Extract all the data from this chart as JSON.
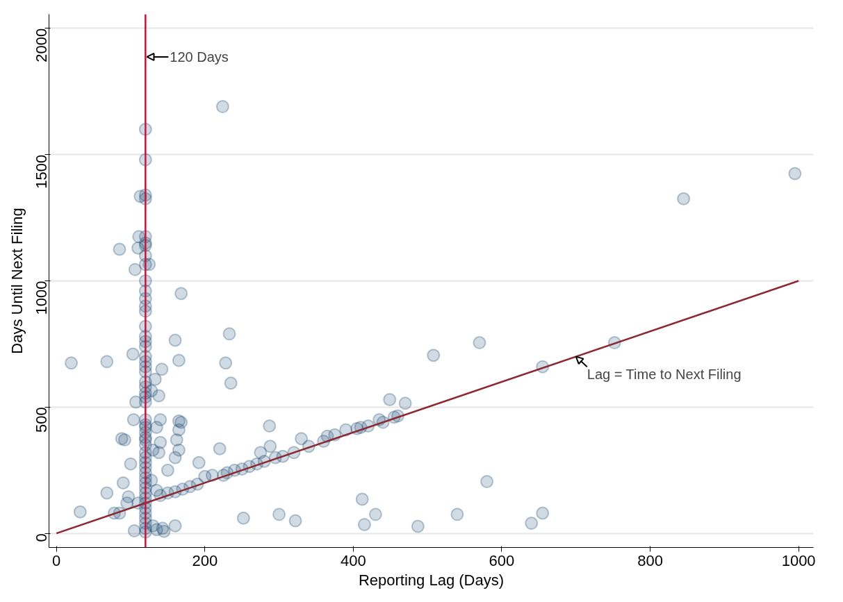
{
  "chart_data": {
    "type": "scatter",
    "xlabel": "Reporting Lag (Days)",
    "ylabel": "Days Until Next Filing",
    "xlim": [
      -10,
      1020
    ],
    "ylim": [
      -56,
      2056
    ],
    "xticks": [
      0,
      200,
      400,
      600,
      800,
      1000
    ],
    "yticks": [
      0,
      500,
      1000,
      1500,
      2000
    ],
    "grid": "y",
    "series": [
      {
        "marker": "circle",
        "color": "#1a4a72",
        "x": [
          224,
          995,
          845,
          20,
          68,
          168,
          233,
          228,
          235,
          160,
          165,
          508,
          570,
          752,
          655,
          449,
          470,
          580,
          412,
          415,
          430,
          487,
          540,
          640,
          655,
          252,
          300,
          322,
          32,
          120,
          120,
          120,
          120,
          120,
          120,
          120,
          120,
          120,
          120,
          120,
          120,
          120,
          120,
          120,
          120,
          120,
          120,
          120,
          120,
          120,
          120,
          120,
          120,
          120,
          120,
          120,
          120,
          120,
          120,
          120,
          120,
          120,
          120,
          120,
          120,
          120,
          120,
          120,
          120,
          120,
          120,
          120,
          120,
          120,
          120,
          120,
          120,
          120,
          120,
          120,
          113,
          111,
          110,
          106,
          85,
          103,
          107,
          125,
          133,
          138,
          142,
          128,
          104,
          135,
          140,
          165,
          168,
          165,
          162,
          165,
          160,
          150,
          140,
          130,
          88,
          92,
          100,
          90,
          97,
          78,
          68,
          85,
          105,
          135,
          145,
          143,
          130,
          160,
          110,
          95,
          128,
          135,
          138,
          140,
          150,
          160,
          170,
          180,
          190,
          192,
          200,
          210,
          220,
          225,
          230,
          240,
          250,
          260,
          270,
          275,
          280,
          287,
          288,
          295,
          305,
          320,
          330,
          340,
          360,
          365,
          375,
          390,
          405,
          410,
          420,
          435,
          440,
          455,
          460
        ],
        "values": [
          1690,
          1425,
          1325,
          675,
          680,
          950,
          790,
          675,
          595,
          765,
          685,
          705,
          755,
          755,
          660,
          530,
          515,
          205,
          135,
          35,
          75,
          28,
          75,
          40,
          80,
          60,
          75,
          50,
          85,
          1600,
          1480,
          1340,
          1325,
          1175,
          1150,
          1140,
          1100,
          1065,
          1000,
          960,
          930,
          900,
          880,
          820,
          780,
          760,
          740,
          700,
          680,
          660,
          640,
          600,
          580,
          555,
          540,
          520,
          450,
          430,
          420,
          400,
          380,
          370,
          350,
          320,
          300,
          280,
          260,
          240,
          220,
          200,
          180,
          160,
          140,
          120,
          100,
          80,
          60,
          40,
          20,
          5,
          1335,
          1175,
          1130,
          1045,
          1125,
          710,
          520,
          1065,
          610,
          545,
          650,
          565,
          450,
          420,
          450,
          445,
          440,
          410,
          370,
          330,
          300,
          250,
          360,
          330,
          375,
          370,
          275,
          200,
          145,
          80,
          160,
          80,
          10,
          15,
          8,
          20,
          30,
          30,
          120,
          120,
          210,
          170,
          320,
          150,
          160,
          165,
          175,
          185,
          195,
          280,
          225,
          230,
          335,
          230,
          240,
          250,
          255,
          265,
          275,
          320,
          285,
          425,
          345,
          300,
          305,
          320,
          375,
          345,
          365,
          385,
          390,
          410,
          415,
          420,
          425,
          450,
          440,
          460,
          465
        ]
      },
      {
        "type": "line",
        "marker": "none",
        "color": "#8b2a32",
        "x": [
          0,
          1000
        ],
        "values": [
          0,
          1000
        ]
      }
    ],
    "ref_lines": [
      {
        "axis": "x",
        "value": 120,
        "label": "120 Days",
        "color": "#d0103a"
      }
    ],
    "annotations": [
      {
        "text": "Lag = Time to Next Filing",
        "x": 700,
        "y": 700
      }
    ]
  }
}
